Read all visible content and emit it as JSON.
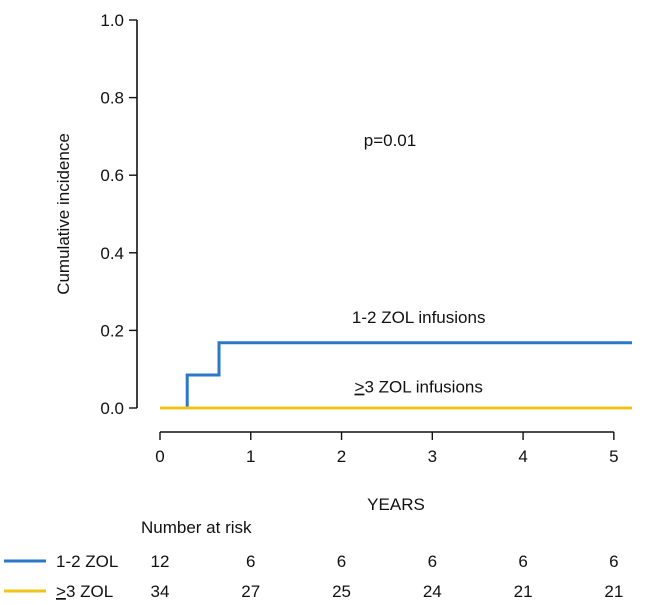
{
  "chart_data": {
    "type": "line",
    "subtype": "cumulative-incidence-step",
    "ylabel": "Cumulative incidence",
    "xlabel": "YEARS",
    "xlim": [
      0,
      5.2
    ],
    "ylim": [
      0,
      1.0
    ],
    "xticks": [
      0,
      1,
      2,
      3,
      4,
      5
    ],
    "yticks": [
      "0.0",
      "0.2",
      "0.4",
      "0.6",
      "0.8",
      "1.0"
    ],
    "annotation": "p=0.01",
    "colors": {
      "blue": "#2a78c7",
      "yellow": "#f0c419"
    },
    "series": [
      {
        "name": "1-2 ZOL infusions",
        "color": "#2a78c7",
        "steps": [
          [
            0.3,
            0.0
          ],
          [
            0.3,
            0.085
          ],
          [
            0.65,
            0.085
          ],
          [
            0.65,
            0.168
          ],
          [
            5.2,
            0.168
          ]
        ],
        "label_x": 2.85,
        "label_y": 0.235
      },
      {
        "name_prefix": "̲>3",
        "name": ">3 ZOL infusions",
        "color": "#f0c419",
        "steps": [
          [
            0.0,
            0.0
          ],
          [
            5.2,
            0.0
          ]
        ],
        "label_x": 2.85,
        "label_y": 0.055
      }
    ],
    "risk_table": {
      "title": "Number at risk",
      "times": [
        0,
        1,
        2,
        3,
        4,
        5
      ],
      "rows": [
        {
          "label": "1-2 ZOL",
          "color": "#2a78c7",
          "values": [
            12,
            6,
            6,
            6,
            6,
            6
          ]
        },
        {
          "label": ">3 ZOL",
          "color": "#f0c419",
          "values": [
            34,
            27,
            25,
            24,
            21,
            21
          ]
        }
      ]
    }
  }
}
